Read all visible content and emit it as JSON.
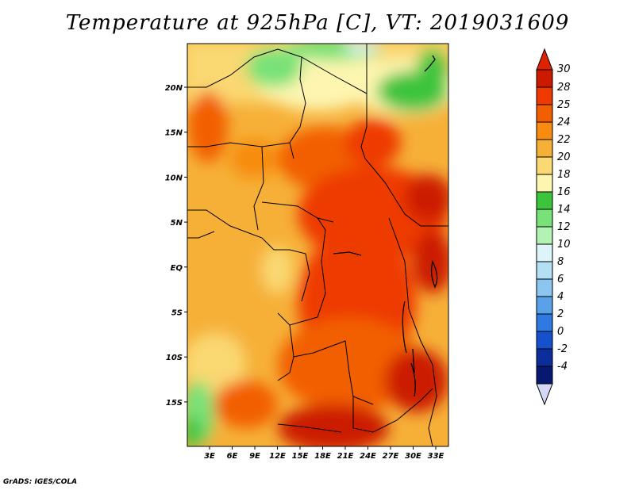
{
  "title": "Temperature at 925hPa [C], VT: 2019031609",
  "credit": "GrADS: IGES/COLA",
  "map": {
    "lon_labels": [
      "3E",
      "6E",
      "9E",
      "12E",
      "15E",
      "18E",
      "21E",
      "24E",
      "27E",
      "30E",
      "33E"
    ],
    "lat_labels": [
      "20N",
      "15N",
      "10N",
      "5N",
      "EQ",
      "5S",
      "10S",
      "15S"
    ]
  },
  "colorbar": {
    "levels": [
      "30",
      "28",
      "25",
      "24",
      "22",
      "20",
      "18",
      "16",
      "14",
      "12",
      "10",
      "8",
      "6",
      "4",
      "2",
      "0",
      "-2",
      "-4"
    ],
    "colors": [
      "#cc1a00",
      "#ee3a00",
      "#f25e00",
      "#f78c10",
      "#f6b038",
      "#fad872",
      "#fdf5b0",
      "#3cc43c",
      "#78e278",
      "#b2f2b2",
      "#dcf4fa",
      "#b4e0f6",
      "#8ac6f0",
      "#5aa2e8",
      "#2f7ae0",
      "#1650cc",
      "#0c2e9a",
      "#061870"
    ],
    "top_color": "#dd2200",
    "bottom_color": "#d6d8f8"
  }
}
